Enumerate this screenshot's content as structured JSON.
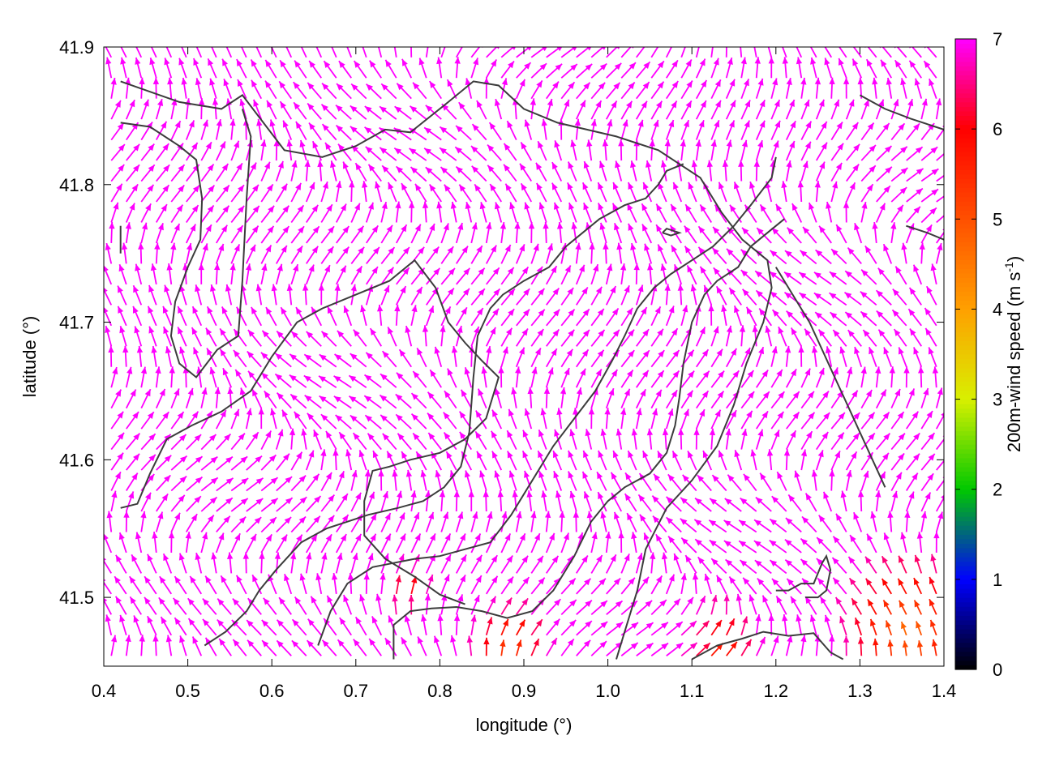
{
  "chart_data": {
    "type": "vector-field",
    "xlabel": "longitude (°)",
    "ylabel": "latitude (°)",
    "xlim": [
      0.4,
      1.4
    ],
    "ylim": [
      41.45,
      41.9
    ],
    "xticks": [
      {
        "value": 0.4,
        "label": "0.4"
      },
      {
        "value": 0.5,
        "label": "0.5"
      },
      {
        "value": 0.6,
        "label": "0.6"
      },
      {
        "value": 0.7,
        "label": "0.7"
      },
      {
        "value": 0.8,
        "label": "0.8"
      },
      {
        "value": 0.9,
        "label": "0.9"
      },
      {
        "value": 1.0,
        "label": "1.0"
      },
      {
        "value": 1.1,
        "label": "1.1"
      },
      {
        "value": 1.2,
        "label": "1.2"
      },
      {
        "value": 1.3,
        "label": "1.3"
      },
      {
        "value": 1.4,
        "label": "1.4"
      }
    ],
    "yticks": [
      {
        "value": 41.5,
        "label": "41.5"
      },
      {
        "value": 41.6,
        "label": "41.6"
      },
      {
        "value": 41.7,
        "label": "41.7"
      },
      {
        "value": 41.8,
        "label": "41.8"
      },
      {
        "value": 41.9,
        "label": "41.9"
      }
    ],
    "colorbar": {
      "label": "200m-wind speed (m s",
      "label_sup": "-1",
      "label_end": ")",
      "range": [
        0,
        7
      ],
      "ticks": [
        {
          "value": 0,
          "label": "0"
        },
        {
          "value": 1,
          "label": "1"
        },
        {
          "value": 2,
          "label": "2"
        },
        {
          "value": 3,
          "label": "3"
        },
        {
          "value": 4,
          "label": "4"
        },
        {
          "value": 5,
          "label": "5"
        },
        {
          "value": 6,
          "label": "6"
        },
        {
          "value": 7,
          "label": "7"
        }
      ],
      "stops": [
        {
          "value": 0,
          "color": "#000000"
        },
        {
          "value": 1,
          "color": "#0000ff"
        },
        {
          "value": 2,
          "color": "#00c800"
        },
        {
          "value": 3,
          "color": "#d8f000"
        },
        {
          "value": 4,
          "color": "#ffa000"
        },
        {
          "value": 5,
          "color": "#ff5000"
        },
        {
          "value": 6,
          "color": "#ff0000"
        },
        {
          "value": 7,
          "color": "#ff00ff"
        }
      ]
    },
    "vector_grid": {
      "x_range": [
        0.4,
        1.4
      ],
      "y_range": [
        41.45,
        41.9
      ],
      "nx": 56,
      "ny": 30,
      "base_speed": 7
    },
    "slow_zones": [
      {
        "lon": 1.36,
        "lat": 41.47,
        "radius": 0.09,
        "min_speed": 4.6
      },
      {
        "lon": 1.13,
        "lat": 41.46,
        "radius": 0.05,
        "min_speed": 5.5
      },
      {
        "lon": 0.88,
        "lat": 41.46,
        "radius": 0.05,
        "min_speed": 5.1
      },
      {
        "lon": 0.76,
        "lat": 41.5,
        "radius": 0.03,
        "min_speed": 5.8
      }
    ],
    "contours": [
      [
        [
          0.42,
          41.875
        ],
        [
          0.49,
          41.86
        ],
        [
          0.54,
          41.855
        ],
        [
          0.565,
          41.865
        ],
        [
          0.59,
          41.845
        ],
        [
          0.615,
          41.825
        ],
        [
          0.66,
          41.82
        ],
        [
          0.7,
          41.828
        ],
        [
          0.735,
          41.84
        ],
        [
          0.765,
          41.838
        ],
        [
          0.81,
          41.86
        ],
        [
          0.84,
          41.875
        ],
        [
          0.87,
          41.872
        ],
        [
          0.9,
          41.855
        ],
        [
          0.94,
          41.845
        ],
        [
          1.01,
          41.835
        ],
        [
          1.06,
          41.825
        ],
        [
          1.11,
          41.805
        ],
        [
          1.135,
          41.78
        ],
        [
          1.16,
          41.76
        ],
        [
          1.19,
          41.745
        ],
        [
          1.195,
          41.725
        ],
        [
          1.185,
          41.7
        ],
        [
          1.165,
          41.67
        ],
        [
          1.15,
          41.64
        ],
        [
          1.13,
          41.61
        ],
        [
          1.1,
          41.585
        ],
        [
          1.07,
          41.565
        ],
        [
          1.045,
          41.535
        ],
        [
          1.035,
          41.505
        ],
        [
          1.02,
          41.475
        ],
        [
          1.01,
          41.455
        ]
      ],
      [
        [
          0.42,
          41.845
        ],
        [
          0.455,
          41.842
        ],
        [
          0.49,
          41.828
        ],
        [
          0.51,
          41.818
        ],
        [
          0.517,
          41.79
        ],
        [
          0.515,
          41.76
        ],
        [
          0.5,
          41.74
        ],
        [
          0.485,
          41.715
        ],
        [
          0.48,
          41.69
        ],
        [
          0.49,
          41.67
        ],
        [
          0.51,
          41.66
        ],
        [
          0.535,
          41.68
        ],
        [
          0.56,
          41.69
        ],
        [
          0.565,
          41.73
        ],
        [
          0.57,
          41.79
        ],
        [
          0.575,
          41.835
        ],
        [
          0.565,
          41.855
        ]
      ],
      [
        [
          0.42,
          41.77
        ],
        [
          0.42,
          41.75
        ]
      ],
      [
        [
          0.42,
          41.565
        ],
        [
          0.44,
          41.568
        ],
        [
          0.455,
          41.59
        ],
        [
          0.475,
          41.615
        ],
        [
          0.505,
          41.625
        ],
        [
          0.54,
          41.635
        ],
        [
          0.575,
          41.65
        ],
        [
          0.6,
          41.675
        ],
        [
          0.63,
          41.7
        ],
        [
          0.66,
          41.71
        ],
        [
          0.7,
          41.72
        ],
        [
          0.74,
          41.73
        ],
        [
          0.77,
          41.745
        ],
        [
          0.795,
          41.725
        ],
        [
          0.81,
          41.7
        ],
        [
          0.83,
          41.685
        ],
        [
          0.85,
          41.672
        ],
        [
          0.87,
          41.66
        ],
        [
          0.855,
          41.63
        ],
        [
          0.83,
          41.615
        ],
        [
          0.8,
          41.605
        ],
        [
          0.765,
          41.6
        ],
        [
          0.74,
          41.595
        ],
        [
          0.72,
          41.592
        ],
        [
          0.71,
          41.57
        ],
        [
          0.71,
          41.545
        ],
        [
          0.735,
          41.528
        ],
        [
          0.77,
          41.515
        ],
        [
          0.8,
          41.502
        ],
        [
          0.83,
          41.495
        ]
      ],
      [
        [
          0.52,
          41.465
        ],
        [
          0.545,
          41.475
        ],
        [
          0.57,
          41.49
        ],
        [
          0.585,
          41.505
        ],
        [
          0.605,
          41.52
        ],
        [
          0.635,
          41.54
        ],
        [
          0.665,
          41.55
        ],
        [
          0.69,
          41.555
        ],
        [
          0.715,
          41.56
        ],
        [
          0.75,
          41.565
        ],
        [
          0.78,
          41.57
        ],
        [
          0.805,
          41.58
        ],
        [
          0.825,
          41.595
        ],
        [
          0.835,
          41.62
        ],
        [
          0.84,
          41.66
        ],
        [
          0.845,
          41.69
        ],
        [
          0.86,
          41.71
        ],
        [
          0.875,
          41.72
        ],
        [
          0.9,
          41.73
        ],
        [
          0.93,
          41.74
        ],
        [
          0.95,
          41.755
        ],
        [
          0.97,
          41.765
        ],
        [
          0.99,
          41.775
        ],
        [
          1.02,
          41.785
        ],
        [
          1.045,
          41.79
        ],
        [
          1.06,
          41.8
        ],
        [
          1.07,
          41.81
        ],
        [
          1.09,
          41.815
        ]
      ],
      [
        [
          0.655,
          41.465
        ],
        [
          0.67,
          41.49
        ],
        [
          0.69,
          41.51
        ],
        [
          0.72,
          41.522
        ],
        [
          0.745,
          41.525
        ],
        [
          0.77,
          41.528
        ],
        [
          0.8,
          41.53
        ],
        [
          0.83,
          41.535
        ],
        [
          0.86,
          41.54
        ],
        [
          0.885,
          41.56
        ],
        [
          0.91,
          41.585
        ],
        [
          0.935,
          41.61
        ],
        [
          0.96,
          41.63
        ],
        [
          0.985,
          41.65
        ],
        [
          1.005,
          41.672
        ],
        [
          1.02,
          41.69
        ],
        [
          1.035,
          41.71
        ],
        [
          1.055,
          41.725
        ],
        [
          1.075,
          41.735
        ],
        [
          1.1,
          41.745
        ],
        [
          1.125,
          41.755
        ],
        [
          1.15,
          41.77
        ],
        [
          1.17,
          41.785
        ],
        [
          1.195,
          41.805
        ],
        [
          1.2,
          41.82
        ]
      ],
      [
        [
          0.745,
          41.455
        ],
        [
          0.745,
          41.48
        ],
        [
          0.765,
          41.49
        ],
        [
          0.79,
          41.492
        ],
        [
          0.82,
          41.493
        ],
        [
          0.85,
          41.49
        ],
        [
          0.88,
          41.485
        ],
        [
          0.91,
          41.49
        ],
        [
          0.935,
          41.505
        ],
        [
          0.96,
          41.53
        ],
        [
          0.98,
          41.555
        ],
        [
          1.0,
          41.57
        ],
        [
          1.02,
          41.58
        ],
        [
          1.05,
          41.59
        ],
        [
          1.07,
          41.605
        ],
        [
          1.08,
          41.625
        ],
        [
          1.085,
          41.645
        ],
        [
          1.09,
          41.67
        ],
        [
          1.1,
          41.7
        ],
        [
          1.115,
          41.72
        ],
        [
          1.13,
          41.73
        ],
        [
          1.155,
          41.74
        ],
        [
          1.17,
          41.755
        ],
        [
          1.19,
          41.765
        ],
        [
          1.21,
          41.775
        ]
      ],
      [
        [
          1.1,
          41.455
        ],
        [
          1.13,
          41.465
        ],
        [
          1.16,
          41.47
        ],
        [
          1.185,
          41.475
        ],
        [
          1.215,
          41.472
        ],
        [
          1.245,
          41.474
        ],
        [
          1.265,
          41.46
        ],
        [
          1.28,
          41.455
        ]
      ],
      [
        [
          1.2,
          41.505
        ],
        [
          1.215,
          41.505
        ],
        [
          1.23,
          41.51
        ],
        [
          1.245,
          41.51
        ],
        [
          1.255,
          41.525
        ],
        [
          1.26,
          41.53
        ],
        [
          1.265,
          41.52
        ],
        [
          1.26,
          41.505
        ],
        [
          1.25,
          41.5
        ],
        [
          1.235,
          41.5
        ]
      ],
      [
        [
          1.065,
          41.765
        ],
        [
          1.075,
          41.763
        ],
        [
          1.085,
          41.765
        ],
        [
          1.07,
          41.768
        ],
        [
          1.065,
          41.765
        ]
      ],
      [
        [
          1.3,
          41.865
        ],
        [
          1.33,
          41.855
        ],
        [
          1.36,
          41.848
        ],
        [
          1.39,
          41.842
        ],
        [
          1.4,
          41.84
        ]
      ],
      [
        [
          1.355,
          41.77
        ],
        [
          1.38,
          41.765
        ],
        [
          1.4,
          41.76
        ]
      ],
      [
        [
          1.2,
          41.74
        ],
        [
          1.22,
          41.72
        ],
        [
          1.24,
          41.7
        ],
        [
          1.255,
          41.68
        ],
        [
          1.27,
          41.66
        ],
        [
          1.285,
          41.64
        ],
        [
          1.3,
          41.62
        ],
        [
          1.315,
          41.6
        ],
        [
          1.33,
          41.58
        ]
      ]
    ]
  }
}
